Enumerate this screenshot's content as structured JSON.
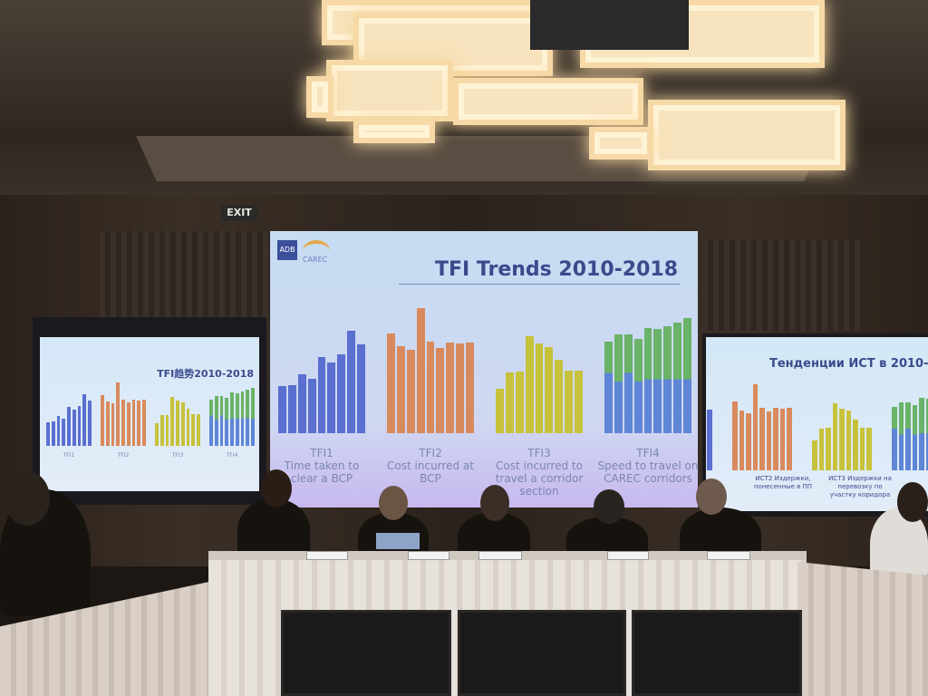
{
  "exit_sign": "EXIT",
  "main_screen": {
    "logos": [
      "ADB",
      "CAREC"
    ],
    "title": "TFI Trends 2010-2018",
    "charts": [
      {
        "label": "TFI1",
        "caption": "Time taken to clear a BCP",
        "color": "#5a6fcf",
        "values": [
          153,
          156,
          190,
          176,
          248,
          230,
          256,
          333,
          288
        ]
      },
      {
        "label": "TFI2",
        "caption": "Cost incurred at BCP",
        "color": "#d98a5c",
        "values": [
          323,
          283,
          270,
          406,
          296,
          276,
          294,
          290,
          293
        ]
      },
      {
        "label": "TFI3",
        "caption": "Cost incurred to travel a corridor section",
        "color": "#c7c23c",
        "values": [
          143,
          196,
          200,
          316,
          290,
          280,
          238,
          202,
          202
        ]
      },
      {
        "label": "TFI4",
        "caption": "Speed to travel on CAREC corridors",
        "color": "#5f86d6",
        "color2": "#6ab368",
        "values": [
          298,
          321,
          321,
          306,
          340,
          338,
          346,
          358,
          373
        ],
        "values_lower": [
          196,
          168,
          196,
          168,
          175,
          175,
          175,
          175,
          175
        ]
      }
    ]
  },
  "left_screen": {
    "title": "TFI趋势2010-2018",
    "labels": [
      "TFI1",
      "TFI2",
      "TFI3",
      "TFI4"
    ]
  },
  "right_screen": {
    "title": "Тенденции ИСТ в 2010-",
    "labels": [
      "ИСТ2 Издержки, понесенные в ПП",
      "ИСТ3 Издержки на перевозку по участку коридора"
    ]
  }
}
